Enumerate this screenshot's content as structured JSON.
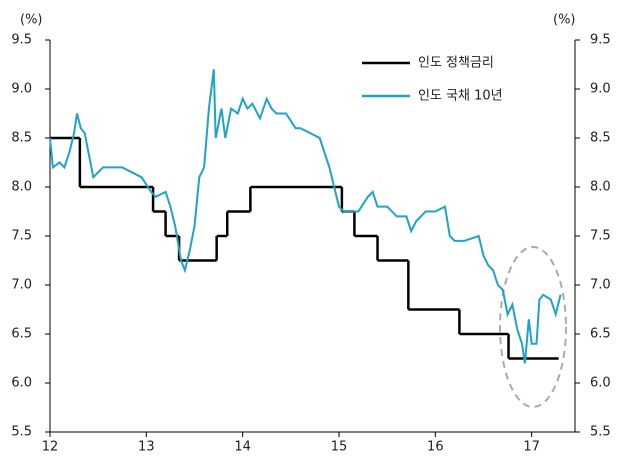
{
  "chart_data": {
    "type": "line",
    "ylabel": "(%)",
    "y2label": "(%)",
    "xlim": [
      12,
      17.45
    ],
    "xticks": [
      12,
      13,
      14,
      15,
      16,
      17
    ],
    "ylim": [
      5.5,
      9.5
    ],
    "yticks": [
      {
        "value": 5.5,
        "label": "5.5"
      },
      {
        "value": 6,
        "label": "6.0"
      },
      {
        "value": 6.5,
        "label": "6.5"
      },
      {
        "value": 7,
        "label": "7.0"
      },
      {
        "value": 7.5,
        "label": "7.5"
      },
      {
        "value": 8,
        "label": "8.0"
      },
      {
        "value": 8.5,
        "label": "8.5"
      },
      {
        "value": 9,
        "label": "9.0"
      },
      {
        "value": 9.5,
        "label": "9.5"
      }
    ],
    "y2lim": [
      5.5,
      9.5
    ],
    "y2ticks": [
      {
        "value": 5.5,
        "label": "5.5"
      },
      {
        "value": 6,
        "label": "6.0"
      },
      {
        "value": 6.5,
        "label": "6.5"
      },
      {
        "value": 7,
        "label": "7.0"
      },
      {
        "value": 7.5,
        "label": "7.5"
      },
      {
        "value": 8,
        "label": "8.0"
      },
      {
        "value": 8.5,
        "label": "8.5"
      },
      {
        "value": 9,
        "label": "9.0"
      },
      {
        "value": 9.5,
        "label": "9.5"
      }
    ],
    "legend": "upper right",
    "series": [
      {
        "name": "인도 정책금리",
        "color": "#000000",
        "step": true,
        "x": [
          12.0,
          12.31,
          13.07,
          13.2,
          13.34,
          13.73,
          13.84,
          14.08,
          15.03,
          15.16,
          15.4,
          15.72,
          16.25,
          16.76,
          17.28
        ],
        "values": [
          8.5,
          8.0,
          7.75,
          7.5,
          7.25,
          7.5,
          7.75,
          8.0,
          7.75,
          7.5,
          7.25,
          6.75,
          6.5,
          6.25,
          6.25
        ]
      },
      {
        "name": "인도 국채 10년",
        "color": "#1fa3c8",
        "x": [
          12.0,
          12.03,
          12.1,
          12.15,
          12.2,
          12.25,
          12.28,
          12.32,
          12.36,
          12.4,
          12.45,
          12.5,
          12.55,
          12.65,
          12.75,
          12.85,
          12.95,
          13.05,
          13.1,
          13.2,
          13.25,
          13.3,
          13.36,
          13.4,
          13.45,
          13.5,
          13.55,
          13.6,
          13.65,
          13.7,
          13.72,
          13.78,
          13.82,
          13.88,
          13.95,
          14.0,
          14.05,
          14.1,
          14.18,
          14.25,
          14.3,
          14.35,
          14.45,
          14.55,
          14.6,
          14.7,
          14.8,
          14.9,
          14.95,
          15.0,
          15.05,
          15.1,
          15.2,
          15.3,
          15.35,
          15.4,
          15.5,
          15.6,
          15.7,
          15.75,
          15.8,
          15.9,
          16.0,
          16.1,
          16.15,
          16.2,
          16.3,
          16.45,
          16.5,
          16.55,
          16.6,
          16.65,
          16.7,
          16.75,
          16.8,
          16.85,
          16.9,
          16.93,
          16.97,
          17.0,
          17.05,
          17.08,
          17.12,
          17.2,
          17.25,
          17.3
        ],
        "values": [
          8.5,
          8.2,
          8.25,
          8.2,
          8.35,
          8.55,
          8.75,
          8.6,
          8.55,
          8.35,
          8.1,
          8.15,
          8.2,
          8.2,
          8.2,
          8.15,
          8.1,
          7.95,
          7.9,
          7.95,
          7.8,
          7.6,
          7.25,
          7.15,
          7.35,
          7.6,
          8.1,
          8.2,
          8.8,
          9.2,
          8.5,
          8.8,
          8.5,
          8.8,
          8.75,
          8.9,
          8.8,
          8.85,
          8.7,
          8.9,
          8.8,
          8.75,
          8.75,
          8.6,
          8.6,
          8.55,
          8.5,
          8.2,
          8.0,
          7.8,
          7.75,
          7.75,
          7.75,
          7.9,
          7.95,
          7.8,
          7.8,
          7.7,
          7.7,
          7.55,
          7.65,
          7.75,
          7.75,
          7.8,
          7.5,
          7.45,
          7.45,
          7.5,
          7.3,
          7.2,
          7.15,
          7.0,
          6.95,
          6.7,
          6.8,
          6.55,
          6.4,
          6.2,
          6.65,
          6.4,
          6.4,
          6.85,
          6.9,
          6.85,
          6.7,
          6.9
        ]
      }
    ]
  }
}
